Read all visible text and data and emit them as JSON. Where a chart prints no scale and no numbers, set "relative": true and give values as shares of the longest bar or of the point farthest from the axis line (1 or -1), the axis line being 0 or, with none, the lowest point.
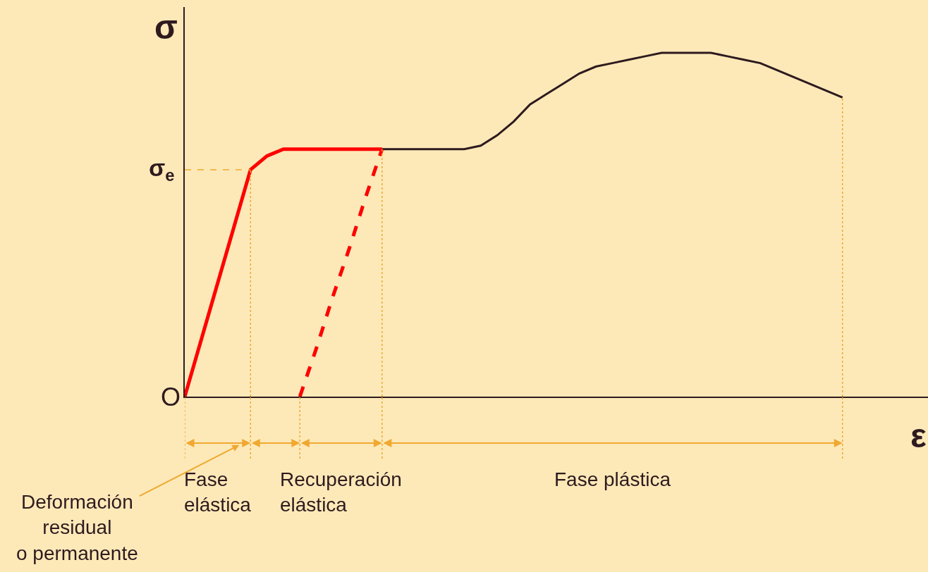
{
  "chart_data": {
    "type": "line",
    "relative": true,
    "tick_labels": false,
    "grid": false,
    "xlabel": "ε",
    "ylabel": "σ",
    "categories": [
      null,
      null,
      null,
      null,
      null,
      null,
      null,
      null,
      null,
      null,
      null,
      null,
      null,
      null,
      null,
      null,
      null,
      null,
      null,
      null,
      null,
      null,
      null,
      null,
      null,
      null,
      null,
      null,
      null,
      null,
      null,
      null,
      null,
      null,
      null,
      null,
      null,
      null,
      null,
      null,
      null,
      null,
      null,
      null,
      null,
      null
    ],
    "series": [
      {
        "color": "#ff0000",
        "values": [
          0,
          0.165,
          0.33,
          0.495,
          0.66,
          0.7,
          0.72,
          0.72,
          0.72,
          0.72,
          0.72,
          0.72,
          0.72,
          null,
          null,
          null,
          null,
          null,
          null,
          null,
          null,
          null,
          null,
          null,
          null,
          null,
          null,
          null,
          null,
          null,
          null,
          null,
          null,
          null,
          null,
          null,
          null,
          null,
          null,
          null,
          null,
          null,
          null,
          null,
          null,
          null
        ]
      },
      {
        "color": "#2e1a1e",
        "values": [
          null,
          null,
          null,
          null,
          null,
          null,
          null,
          null,
          null,
          null,
          null,
          null,
          0.72,
          0.72,
          0.72,
          0.72,
          0.72,
          0.72,
          0.73,
          0.76,
          0.8,
          0.85,
          0.88,
          0.91,
          0.94,
          0.96,
          0.97,
          0.98,
          0.99,
          1,
          1,
          1,
          1,
          0.99,
          0.98,
          0.97,
          0.95,
          0.93,
          0.91,
          0.89,
          0.87,
          null,
          null,
          null,
          null,
          null
        ]
      },
      {
        "color": "#ff0000",
        "line_style": "dashed",
        "values": [
          null,
          null,
          null,
          null,
          null,
          null,
          null,
          0,
          0.14,
          0.29,
          0.43,
          0.58,
          0.72,
          null,
          null,
          null,
          null,
          null,
          null,
          null,
          null,
          null,
          null,
          null,
          null,
          null,
          null,
          null,
          null,
          null,
          null,
          null,
          null,
          null,
          null,
          null,
          null,
          null,
          null,
          null,
          null,
          null,
          null,
          null,
          null,
          null
        ]
      }
    ],
    "ref_lines": [
      {
        "axis": "y",
        "value": 0.66,
        "label": "σ$_{e}$",
        "color": "#f0a830",
        "line_style": "dashed"
      }
    ],
    "annotations": [
      "O",
      "Fase\nelástica",
      "Deformación\nresidual\no permanente",
      "Recuperación\nelástica",
      "Fase plástica"
    ]
  }
}
